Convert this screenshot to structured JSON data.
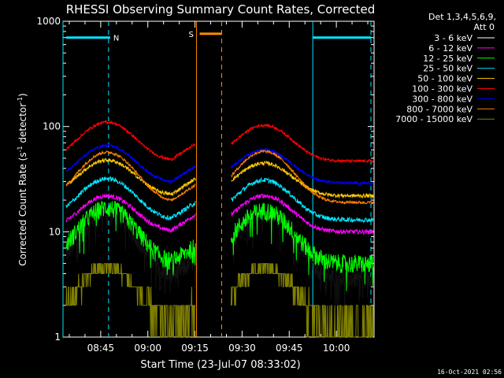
{
  "chart_data": {
    "type": "line",
    "title": "RHESSI Observing Summary Count Rates, Corrected",
    "xlabel": "Start Time (23-Jul-07 08:33:02)",
    "ylabel_main": "Corrected Count Rate (s",
    "ylabel_sup1": "-1",
    "ylabel_mid": " detector",
    "ylabel_sup2": "-1",
    "ylabel_end": ")",
    "y_scale": "log",
    "ylim": [
      1,
      1000
    ],
    "xlim_minutes_after_0830": [
      3.0,
      102.0
    ],
    "x_ticks": [
      {
        "label": "08:45",
        "minute": 15
      },
      {
        "label": "09:00",
        "minute": 30
      },
      {
        "label": "09:15",
        "minute": 45
      },
      {
        "label": "09:30",
        "minute": 60
      },
      {
        "label": "09:45",
        "minute": 75
      },
      {
        "label": "10:00",
        "minute": 90
      }
    ],
    "y_ticks": [
      {
        "label": "1",
        "value": 1
      },
      {
        "label": "10",
        "value": 10
      },
      {
        "label": "100",
        "value": 100
      },
      {
        "label": "1000",
        "value": 1000
      }
    ],
    "legend_header": [
      "Det 1,3,4,5,6,9,",
      "Att 0"
    ],
    "legend_placement": "right",
    "timestamp": "16-Oct-2021 02:56",
    "data_gap_minutes": [
      45.5,
      54.0
    ],
    "annotations": [
      {
        "label": "N",
        "color": "#00e5ff",
        "bar_start": 4.0,
        "bar_end": 18.0,
        "dashed_line": 17.5,
        "level": 700
      },
      {
        "label": "S",
        "color": "#ff8c00",
        "bar_start": 46.5,
        "bar_end": 53.5,
        "dashed_line": 53.5,
        "level": 760
      },
      {
        "label": "",
        "color": "#00e5ff",
        "bar_start": 82.5,
        "bar_end": 101.0,
        "dashed_line": 101.0,
        "level": 700
      }
    ],
    "solid_vlines": [
      {
        "minute": 3.0,
        "color": "#00e5ff"
      },
      {
        "minute": 45.5,
        "color": "#ff8c00"
      },
      {
        "minute": 82.5,
        "color": "#00e5ff"
      }
    ],
    "series": [
      {
        "name": "3 - 6 keV",
        "color": "#000000",
        "base": 3.6,
        "peak1": 15,
        "peak2": 15,
        "noise": 0.08
      },
      {
        "name": "6 - 12 keV",
        "color": "#ff00ff",
        "base": 10,
        "peak1": 22,
        "peak2": 22,
        "noise": 0.05
      },
      {
        "name": "12 - 25 keV",
        "color": "#00ff00",
        "base": 5,
        "peak1": 17,
        "peak2": 16,
        "noise": 0.08
      },
      {
        "name": "25 - 50 keV",
        "color": "#00e5ff",
        "base": 13,
        "peak1": 32,
        "peak2": 31,
        "noise": 0.05
      },
      {
        "name": "50 - 100 keV",
        "color": "#ffcc00",
        "base": 22,
        "peak1": 48,
        "peak2": 45,
        "noise": 0.04
      },
      {
        "name": "100 - 300 keV",
        "color": "#ff0000",
        "base": 47,
        "peak1": 110,
        "peak2": 103,
        "noise": 0.03
      },
      {
        "name": "300 - 800 keV",
        "color": "#0000ff",
        "base": 29,
        "peak1": 66,
        "peak2": 60,
        "noise": 0.03
      },
      {
        "name": "800 - 7000 keV",
        "color": "#ff8000",
        "base": 19,
        "peak1": 57,
        "peak2": 58,
        "noise": 0.03
      },
      {
        "name": "7000 - 15000 keV",
        "color": "#808000",
        "base": 1.3,
        "peak1": 4.6,
        "peak2": 4.6,
        "noise": 0.0
      }
    ]
  }
}
